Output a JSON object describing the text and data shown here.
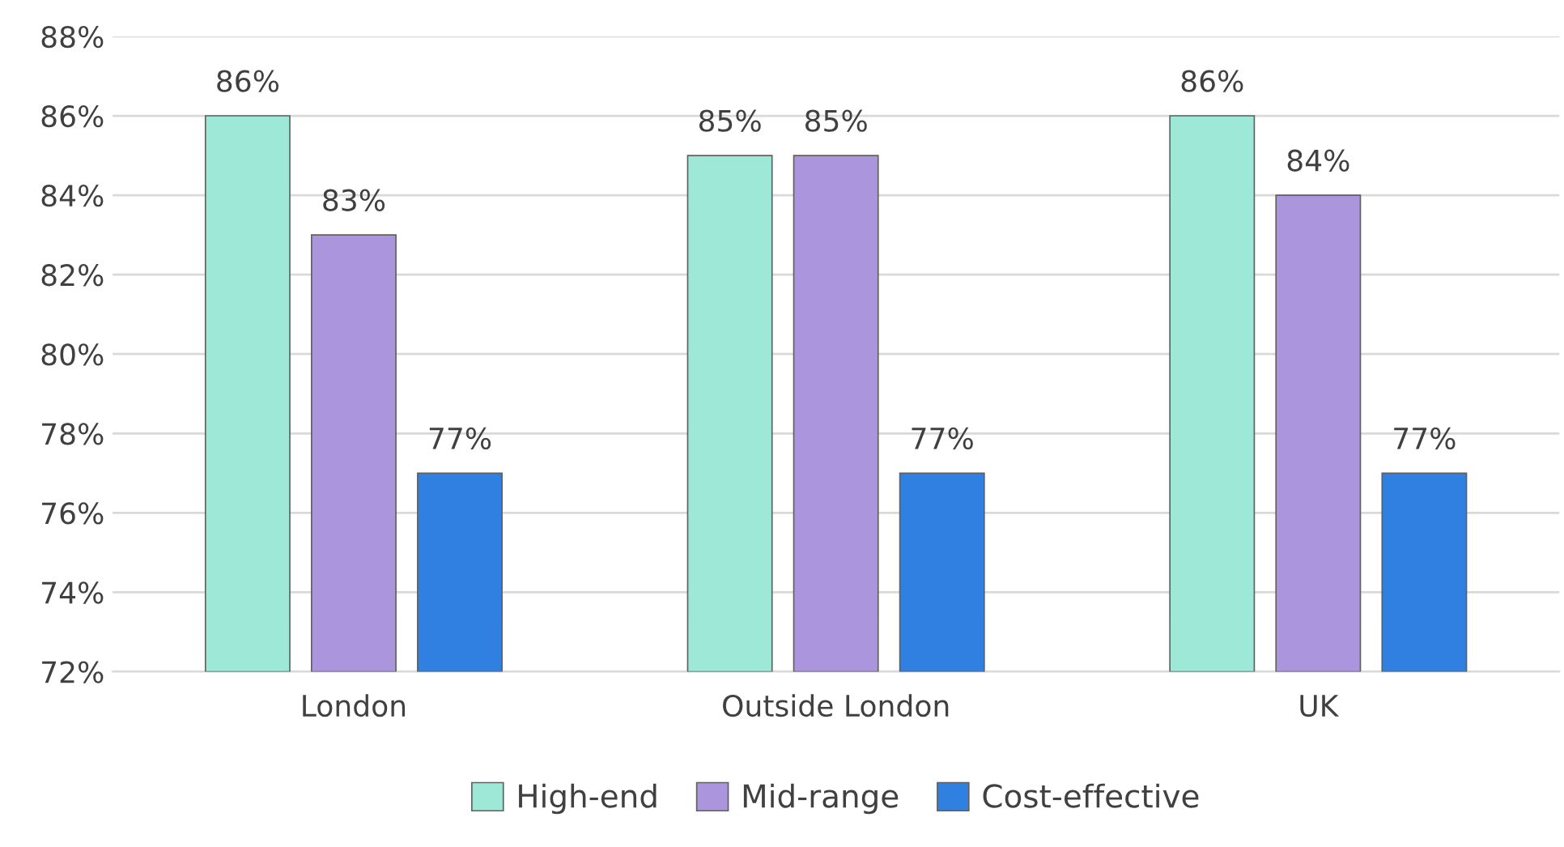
{
  "chart_data": {
    "type": "bar",
    "categories": [
      "London",
      "Outside London",
      "UK"
    ],
    "series": [
      {
        "name": "High-end",
        "color": "#9ee8d8",
        "values": [
          86,
          85,
          86
        ],
        "value_labels": [
          "86%",
          "85%",
          "86%"
        ]
      },
      {
        "name": "Mid-range",
        "color": "#ab96de",
        "values": [
          83,
          85,
          84
        ],
        "value_labels": [
          "83%",
          "85%",
          "84%"
        ]
      },
      {
        "name": "Cost-effective",
        "color": "#2f80e0",
        "values": [
          77,
          77,
          77
        ],
        "value_labels": [
          "77%",
          "77%",
          "77%"
        ]
      }
    ],
    "ylim": [
      72,
      88
    ],
    "yticks": [
      {
        "value": 72,
        "label": "72%"
      },
      {
        "value": 74,
        "label": "74%"
      },
      {
        "value": 76,
        "label": "76%"
      },
      {
        "value": 78,
        "label": "78%"
      },
      {
        "value": 80,
        "label": "80%"
      },
      {
        "value": 82,
        "label": "82%"
      },
      {
        "value": 84,
        "label": "84%"
      },
      {
        "value": 86,
        "label": "86%"
      },
      {
        "value": 88,
        "label": "88%"
      }
    ],
    "grid": "y",
    "legend": "bottom"
  }
}
